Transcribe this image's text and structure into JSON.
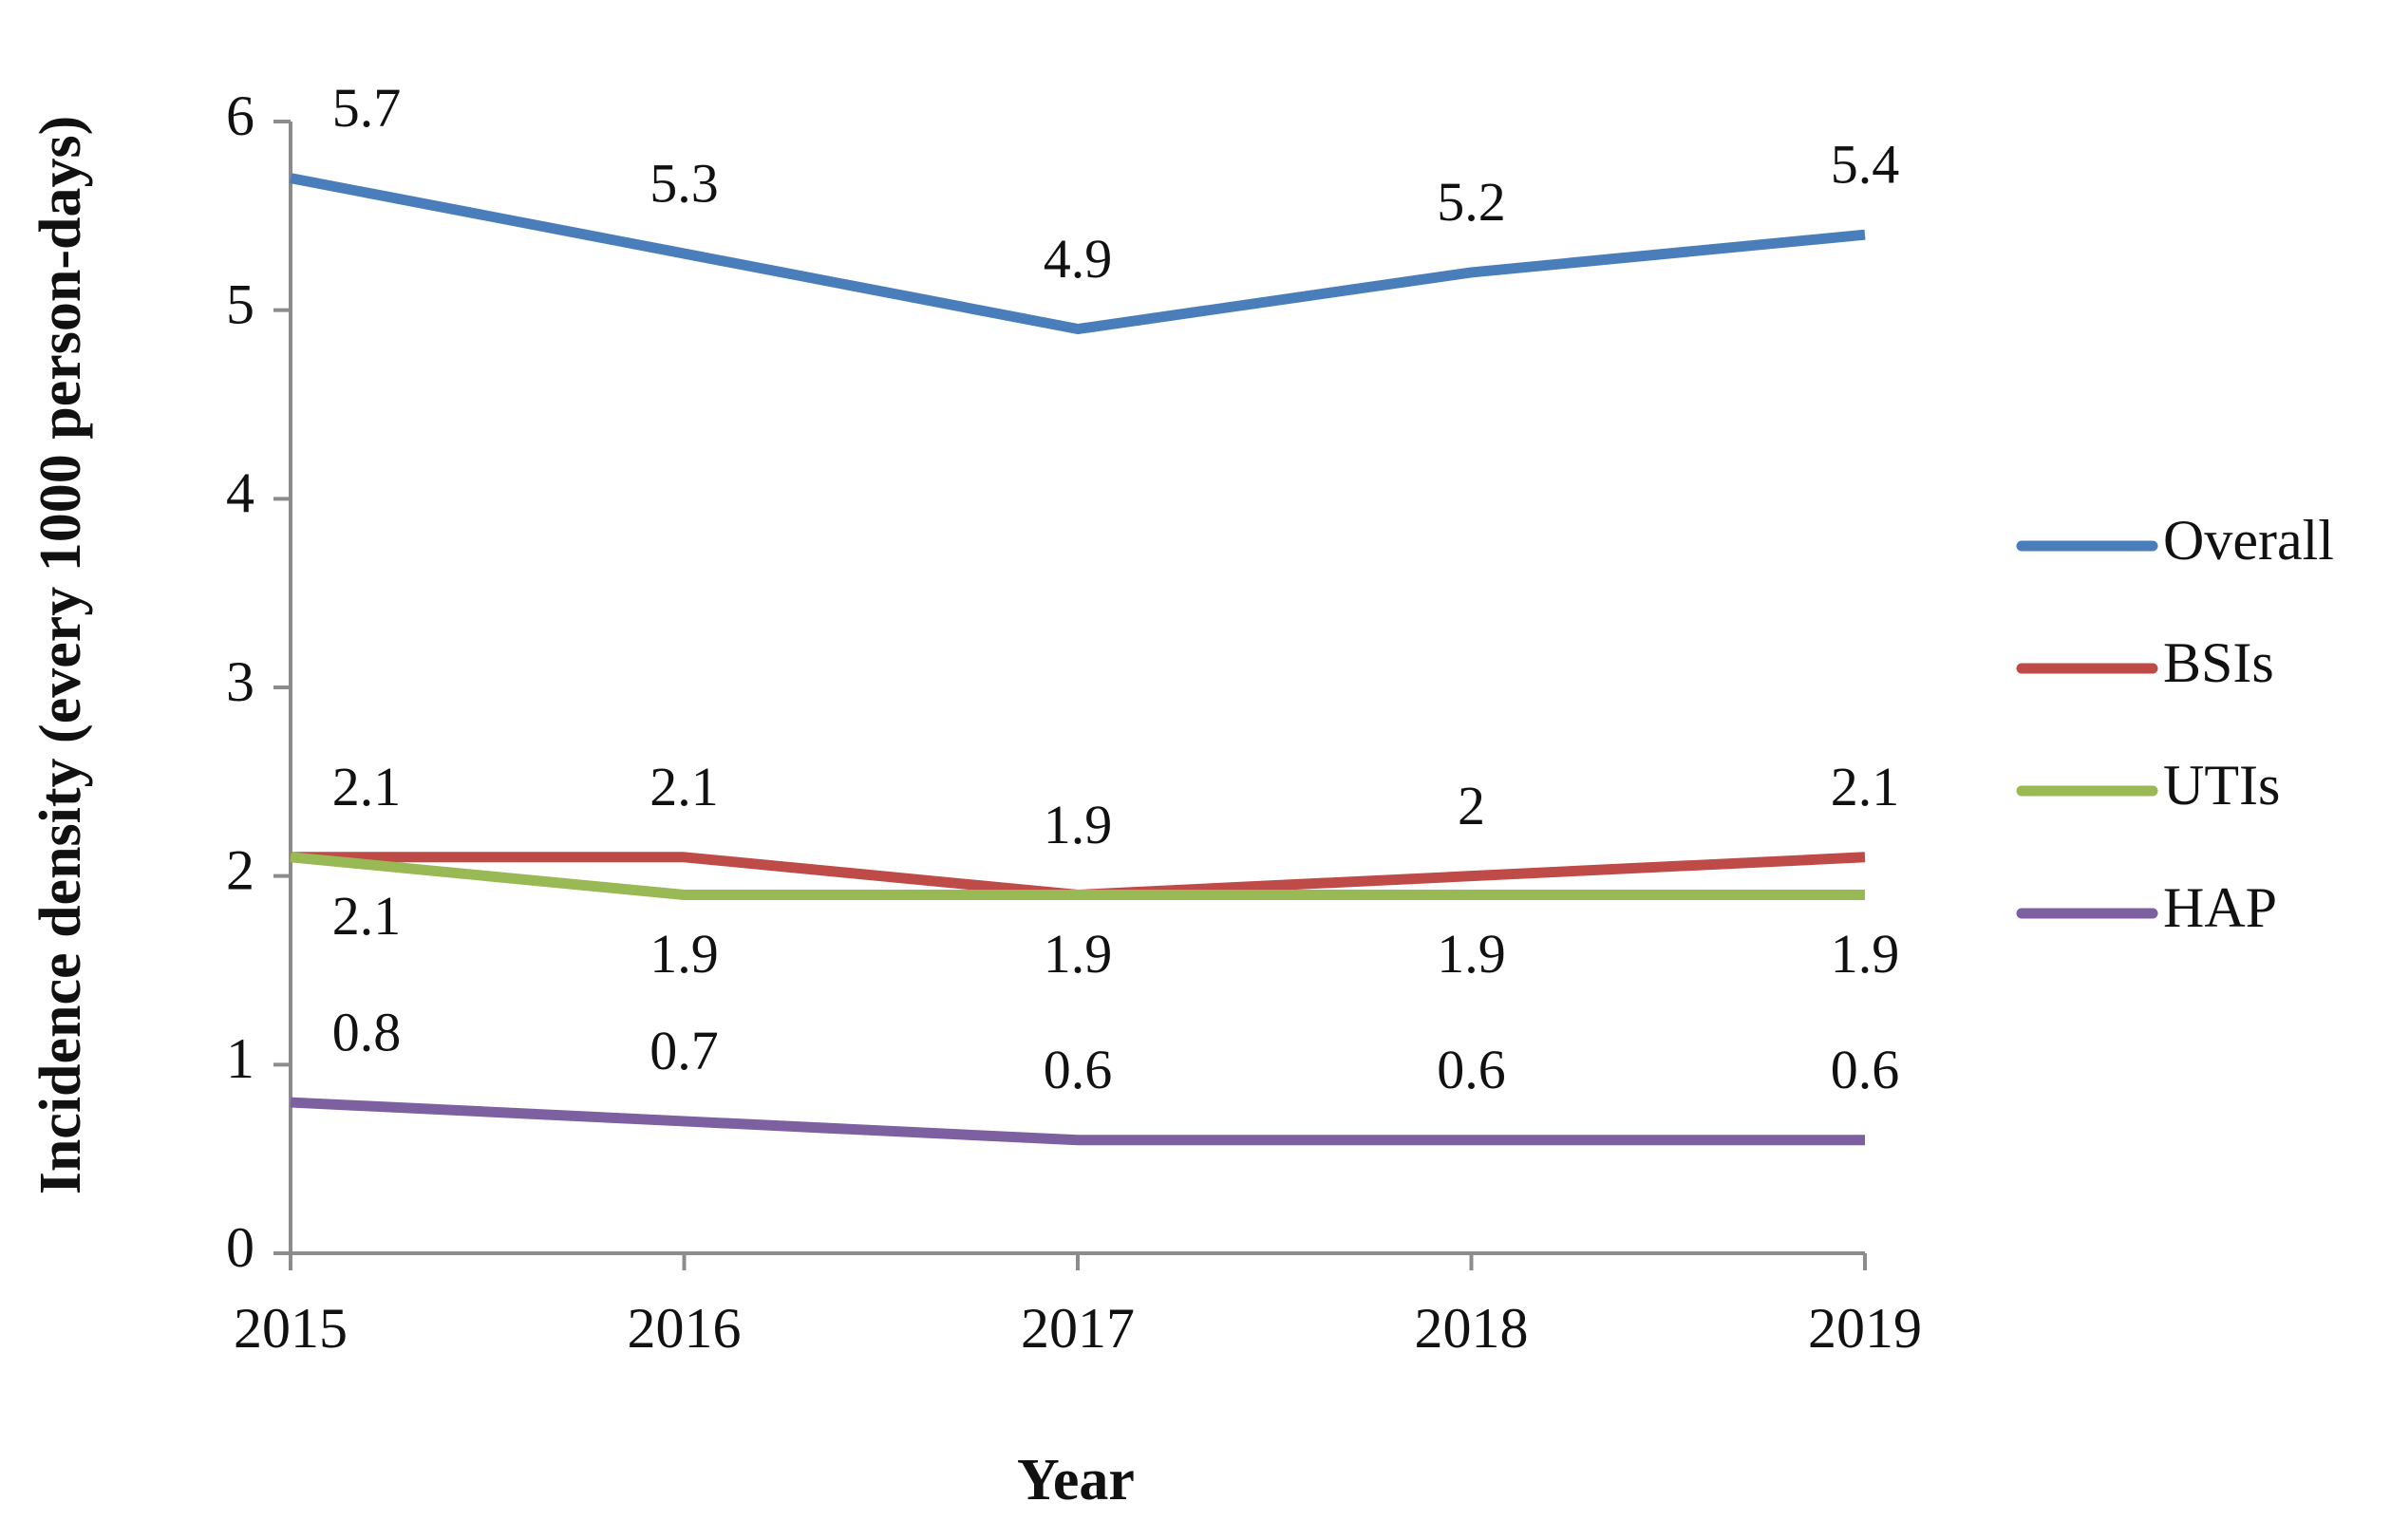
{
  "chart_data": {
    "type": "line",
    "categories": [
      "2015",
      "2016",
      "2017",
      "2018",
      "2019"
    ],
    "x_label": "Year",
    "y_label": "Incidence density  (every 1000 person-days)",
    "ylim": [
      0,
      6
    ],
    "yticks": [
      0,
      1,
      2,
      3,
      4,
      5,
      6
    ],
    "grid": false,
    "legend": "right",
    "series": [
      {
        "name": "Overall",
        "color": "#4a7ebb",
        "values": [
          5.7,
          5.3,
          4.9,
          5.2,
          5.4
        ]
      },
      {
        "name": "BSIs",
        "color": "#be4b48",
        "values": [
          2.1,
          2.1,
          1.9,
          2,
          2.1
        ]
      },
      {
        "name": "UTIs",
        "color": "#98b954",
        "values": [
          2.1,
          1.9,
          1.9,
          1.9,
          1.9
        ]
      },
      {
        "name": "HAP",
        "color": "#7d60a0",
        "values": [
          0.8,
          0.7,
          0.6,
          0.6,
          0.6
        ]
      }
    ]
  }
}
